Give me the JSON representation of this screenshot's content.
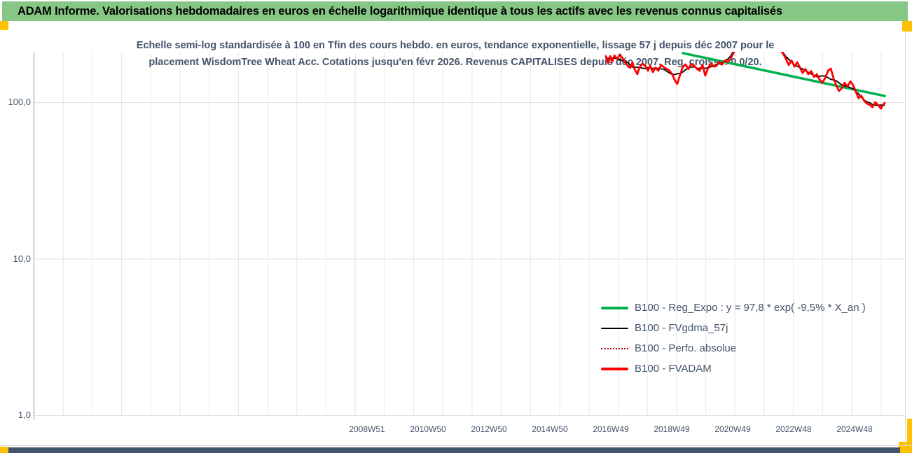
{
  "title_bar": {
    "text": "ADAM Informe. Valorisations hebdomadaires en euros en échelle logarithmique identique à tous les actifs avec les revenus connus capitalisés"
  },
  "chart": {
    "subtitle_line1": "Echelle semi-log standardisée à 100 en Tfin des cours hebdo. en euros, tendance exponentielle, lissage 57 j depuis déc 2007 pour le",
    "subtitle_line2": "placement WisdomTree Wheat Acc. Cotations jusqu'en févr 2026. Revenus CAPITALISES depuis déc 2007. Reg. croiss. : 0,0/20.",
    "legend": [
      {
        "label": "B100 - Reg_Expo : y = 97,8 * exp( -9,5% *  X_an )",
        "color": "#00B050",
        "style": "solid",
        "thickness": 4
      },
      {
        "label": "B100 - FVgdma_57j",
        "color": "#000000",
        "style": "solid",
        "thickness": 2
      },
      {
        "label": "B100 - Perfo. absolue",
        "color": "#C00000",
        "style": "dotted",
        "thickness": 2
      },
      {
        "label": "B100 - FVADAM",
        "color": "#FF0000",
        "style": "solid",
        "thickness": 4
      }
    ]
  },
  "chart_data": {
    "type": "line",
    "x_unit": "decimal_year",
    "y_scale": "log10",
    "grid": "on",
    "legend_position": "inside-right",
    "y_ticks": [
      {
        "label": "100,0",
        "value": 100
      },
      {
        "label": "10,0",
        "value": 10
      },
      {
        "label": "1,0",
        "value": 1
      }
    ],
    "y_top_clip_value": 208,
    "x_ticks": [
      {
        "label": "2008W51",
        "year": 2008.97
      },
      {
        "label": "2010W50",
        "year": 2010.97
      },
      {
        "label": "2012W50",
        "year": 2012.97
      },
      {
        "label": "2014W50",
        "year": 2014.97
      },
      {
        "label": "2016W49",
        "year": 2016.97
      },
      {
        "label": "2018W49",
        "year": 2018.97
      },
      {
        "label": "2020W49",
        "year": 2020.97
      },
      {
        "label": "2022W48",
        "year": 2022.97
      },
      {
        "label": "2024W48",
        "year": 2024.97
      }
    ],
    "series": [
      {
        "name": "B100 - FVADAM",
        "color": "#FF0000",
        "width": 2.8,
        "points": [
          [
            2016.81,
            197
          ],
          [
            2016.88,
            178
          ],
          [
            2016.95,
            197
          ],
          [
            2017.02,
            182
          ],
          [
            2017.09,
            199
          ],
          [
            2017.18,
            189
          ],
          [
            2017.27,
            202
          ],
          [
            2017.36,
            191
          ],
          [
            2017.45,
            178
          ],
          [
            2017.55,
            169
          ],
          [
            2017.61,
            166
          ],
          [
            2017.68,
            180
          ],
          [
            2017.75,
            163
          ],
          [
            2017.84,
            151
          ],
          [
            2017.91,
            167
          ],
          [
            2018.0,
            176
          ],
          [
            2018.1,
            171
          ],
          [
            2018.19,
            159
          ],
          [
            2018.26,
            171
          ],
          [
            2018.35,
            156
          ],
          [
            2018.44,
            166
          ],
          [
            2018.53,
            159
          ],
          [
            2018.62,
            173
          ],
          [
            2018.72,
            167
          ],
          [
            2018.81,
            163
          ],
          [
            2018.9,
            159
          ],
          [
            2018.99,
            150
          ],
          [
            2019.09,
            136
          ],
          [
            2019.15,
            131
          ],
          [
            2019.25,
            151
          ],
          [
            2019.34,
            169
          ],
          [
            2019.43,
            174
          ],
          [
            2019.52,
            163
          ],
          [
            2019.61,
            176
          ],
          [
            2019.71,
            171
          ],
          [
            2019.8,
            163
          ],
          [
            2019.89,
            159
          ],
          [
            2019.98,
            173
          ],
          [
            2020.07,
            148
          ],
          [
            2020.17,
            167
          ],
          [
            2020.26,
            176
          ],
          [
            2020.35,
            169
          ],
          [
            2020.44,
            171
          ],
          [
            2020.53,
            181
          ],
          [
            2020.62,
            174
          ],
          [
            2020.72,
            185
          ],
          [
            2020.81,
            181
          ],
          [
            2020.9,
            189
          ],
          [
            2020.97,
            202
          ],
          [
            2021.04,
            213
          ],
          [
            2021.18,
            242
          ],
          [
            2021.41,
            255
          ],
          [
            2021.64,
            248
          ],
          [
            2021.87,
            268
          ],
          [
            2022.1,
            255
          ],
          [
            2022.33,
            237
          ],
          [
            2022.49,
            222
          ],
          [
            2022.63,
            204
          ],
          [
            2022.72,
            189
          ],
          [
            2022.81,
            173
          ],
          [
            2022.9,
            185
          ],
          [
            2023.0,
            169
          ],
          [
            2023.09,
            180
          ],
          [
            2023.18,
            166
          ],
          [
            2023.27,
            154
          ],
          [
            2023.36,
            163
          ],
          [
            2023.45,
            151
          ],
          [
            2023.55,
            158
          ],
          [
            2023.64,
            145
          ],
          [
            2023.73,
            151
          ],
          [
            2023.82,
            140
          ],
          [
            2023.91,
            133
          ],
          [
            2024.0,
            142
          ],
          [
            2024.1,
            159
          ],
          [
            2024.19,
            164
          ],
          [
            2024.28,
            142
          ],
          [
            2024.37,
            128
          ],
          [
            2024.46,
            118
          ],
          [
            2024.55,
            123
          ],
          [
            2024.64,
            133
          ],
          [
            2024.74,
            126
          ],
          [
            2024.83,
            136
          ],
          [
            2024.92,
            129
          ],
          [
            2025.01,
            117
          ],
          [
            2025.1,
            106
          ],
          [
            2025.19,
            110
          ],
          [
            2025.29,
            102
          ],
          [
            2025.38,
            98
          ],
          [
            2025.47,
            96
          ],
          [
            2025.56,
            93
          ],
          [
            2025.65,
            100
          ],
          [
            2025.74,
            96
          ],
          [
            2025.84,
            91
          ],
          [
            2025.9,
            96
          ],
          [
            2025.96,
            99
          ]
        ]
      },
      {
        "name": "B100 - FVgdma_57j",
        "color": "#000000",
        "width": 1.8,
        "derived_from": "B100 - FVADAM",
        "smoothing_window": 7
      },
      {
        "name": "B100 - Perfo. absolue",
        "color": "#C00000",
        "width": 1.2,
        "style": "dotted",
        "derived_from": "B100 - FVADAM",
        "note": "coincides with B100 - FVADAM, hidden behind it"
      },
      {
        "name": "B100 - Reg_Expo",
        "color": "#00B050",
        "width": 3.5,
        "equation": "y = 97,8 * exp( -9,5% * X_an )",
        "points": [
          [
            2019.34,
            206
          ],
          [
            2025.96,
            109.6
          ]
        ]
      }
    ]
  },
  "colors": {
    "title_bar_bg": "#87C785",
    "accent_yellow": "#FFC000",
    "bottom_bar": "#44546A",
    "text_dark": "#44546A",
    "gridline": "#E7E7E7",
    "axis_line": "#A9BDD3"
  }
}
